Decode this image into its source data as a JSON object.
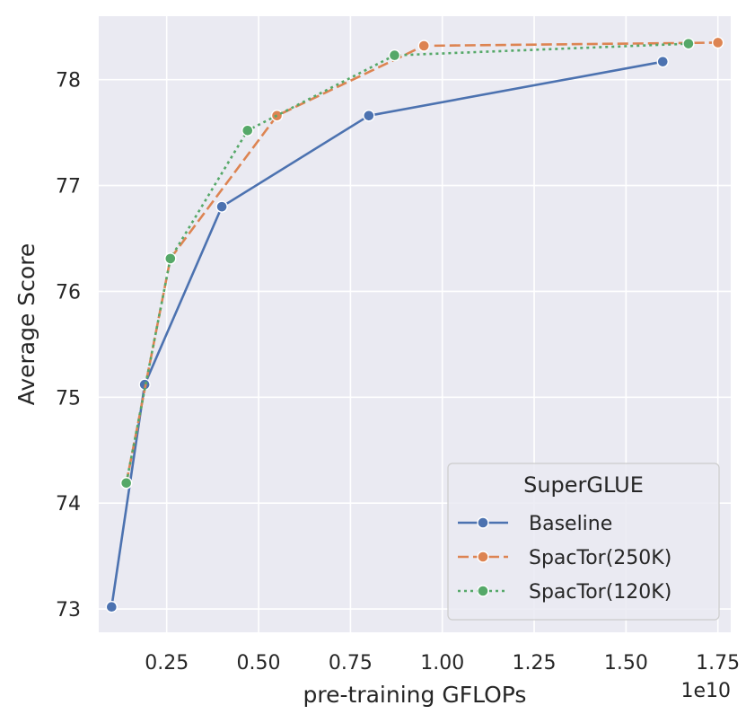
{
  "chart_data": {
    "type": "line",
    "title": "",
    "xlabel": "pre-training GFLOPs",
    "ylabel": "Average Score",
    "x_offset_label": "1e10",
    "x_scale": 10000000000.0,
    "xlim": [
      0.065,
      1.785
    ],
    "ylim": [
      72.78,
      78.6
    ],
    "grid": true,
    "xticks": [
      0.25,
      0.5,
      0.75,
      1.0,
      1.25,
      1.5,
      1.75
    ],
    "xtick_labels": [
      "0.25",
      "0.50",
      "0.75",
      "1.00",
      "1.25",
      "1.50",
      "1.75"
    ],
    "yticks": [
      73,
      74,
      75,
      76,
      77,
      78
    ],
    "ytick_labels": [
      "73",
      "74",
      "75",
      "76",
      "77",
      "78"
    ],
    "legend": {
      "title": "SuperGLUE",
      "position": "lower-right"
    },
    "series": [
      {
        "name": "Baseline",
        "color": "#4c72b0",
        "linestyle": "solid",
        "x": [
          0.1,
          0.19,
          0.4,
          0.8,
          1.6
        ],
        "y": [
          73.02,
          75.12,
          76.8,
          77.66,
          78.17
        ]
      },
      {
        "name": "SpacTor(250K)",
        "color": "#dd8452",
        "linestyle": "dashed",
        "x": [
          0.14,
          0.26,
          0.55,
          0.95,
          1.75
        ],
        "y": [
          74.19,
          76.31,
          77.66,
          78.32,
          78.35
        ]
      },
      {
        "name": "SpacTor(120K)",
        "color": "#55a868",
        "linestyle": "dotted",
        "x": [
          0.14,
          0.26,
          0.47,
          0.87,
          1.67
        ],
        "y": [
          74.19,
          76.31,
          77.52,
          78.23,
          78.34
        ]
      }
    ]
  }
}
